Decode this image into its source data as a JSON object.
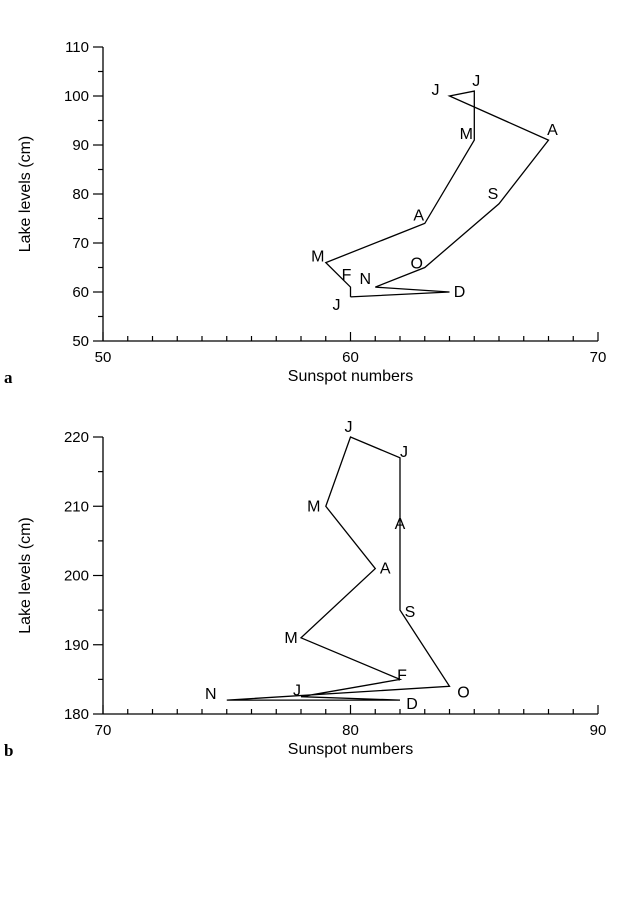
{
  "chart_data": [
    {
      "type": "line",
      "panel_label": "a",
      "xlabel": "Sunspot numbers",
      "ylabel": "Lake levels (cm)",
      "xlim": [
        50,
        70
      ],
      "ylim": [
        50,
        110
      ],
      "x_major_ticks": [
        50,
        60,
        70
      ],
      "x_minor_step": 1,
      "y_major_ticks": [
        50,
        60,
        70,
        80,
        90,
        100,
        110
      ],
      "y_minor_step": 5,
      "grid": false,
      "closed": true,
      "series": [
        {
          "points": [
            {
              "label": "J",
              "x": 60,
              "y": 59
            },
            {
              "label": "F",
              "x": 60,
              "y": 61
            },
            {
              "label": "M",
              "x": 59,
              "y": 66
            },
            {
              "label": "A",
              "x": 63,
              "y": 74
            },
            {
              "label": "M",
              "x": 65,
              "y": 91
            },
            {
              "label": "J",
              "x": 65,
              "y": 101
            },
            {
              "label": "J",
              "x": 64,
              "y": 100
            },
            {
              "label": "A",
              "x": 68,
              "y": 91
            },
            {
              "label": "S",
              "x": 66,
              "y": 78
            },
            {
              "label": "O",
              "x": 63,
              "y": 65
            },
            {
              "label": "N",
              "x": 61,
              "y": 61
            },
            {
              "label": "D",
              "x": 64,
              "y": 60
            }
          ]
        }
      ]
    },
    {
      "type": "line",
      "panel_label": "b",
      "xlabel": "Sunspot numbers",
      "ylabel": "Lake levels (cm)",
      "xlim": [
        70,
        90
      ],
      "ylim": [
        180,
        220
      ],
      "x_major_ticks": [
        70,
        80,
        90
      ],
      "x_minor_step": 1,
      "y_major_ticks": [
        180,
        190,
        200,
        210,
        220
      ],
      "y_minor_step": 5,
      "grid": false,
      "closed": true,
      "series": [
        {
          "points": [
            {
              "label": "J",
              "x": 78,
              "y": 182.5
            },
            {
              "label": "F",
              "x": 82,
              "y": 185
            },
            {
              "label": "M",
              "x": 78,
              "y": 191
            },
            {
              "label": "A",
              "x": 81,
              "y": 201
            },
            {
              "label": "M",
              "x": 79,
              "y": 210
            },
            {
              "label": "J",
              "x": 80,
              "y": 220
            },
            {
              "label": "J",
              "x": 82,
              "y": 217
            },
            {
              "label": "A",
              "x": 82,
              "y": 208
            },
            {
              "label": "S",
              "x": 82,
              "y": 195
            },
            {
              "label": "O",
              "x": 84,
              "y": 184
            },
            {
              "label": "N",
              "x": 75,
              "y": 182
            },
            {
              "label": "D",
              "x": 82,
              "y": 182
            }
          ]
        }
      ]
    }
  ]
}
